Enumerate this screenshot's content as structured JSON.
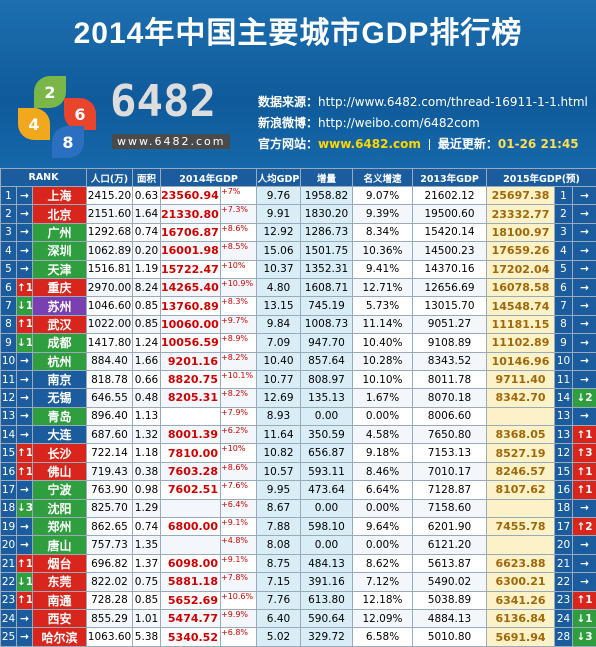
{
  "header": {
    "title": "2014年中国主要城市GDP排行榜",
    "logo": {
      "text": "6482",
      "url": "www.6482.com",
      "petals": [
        "2",
        "6",
        "4",
        "8"
      ]
    },
    "info": [
      {
        "label": "数据来源：",
        "value": "http://www.6482.com/thread-16911-1-1.html"
      },
      {
        "label": "新浪微博：",
        "value": "http://weibo.com/6482com"
      },
      {
        "label": "官方网站：",
        "value": "www.6482.com",
        "label2": "最近更新：",
        "value2": "01-26 21:45"
      }
    ]
  },
  "table": {
    "columns": [
      "RANK",
      "人口(万)",
      "面积",
      "2014年GDP",
      "人均GDP",
      "增量",
      "名义增速",
      "2013年GDP",
      "2015年GDP(预)"
    ],
    "rows": [
      [
        "1",
        "→",
        "上海",
        "2415.20",
        "0.63",
        "23560.94",
        "+7%",
        "9.76",
        "1958.82",
        "9.07%",
        "21602.12",
        "25697.38",
        "1",
        "→"
      ],
      [
        "2",
        "→",
        "北京",
        "2151.60",
        "1.64",
        "21330.80",
        "+7.3%",
        "9.91",
        "1830.20",
        "9.39%",
        "19500.60",
        "23332.77",
        "2",
        "→"
      ],
      [
        "3",
        "→",
        "广州",
        "1292.68",
        "0.74",
        "16706.87",
        "+8.6%",
        "12.92",
        "1286.73",
        "8.34%",
        "15420.14",
        "18100.97",
        "3",
        "→"
      ],
      [
        "4",
        "→",
        "深圳",
        "1062.89",
        "0.20",
        "16001.98",
        "+8.5%",
        "15.06",
        "1501.75",
        "10.36%",
        "14500.23",
        "17659.26",
        "4",
        "→"
      ],
      [
        "5",
        "→",
        "天津",
        "1516.81",
        "1.19",
        "15722.47",
        "+10%",
        "10.37",
        "1352.31",
        "9.41%",
        "14370.16",
        "17202.04",
        "5",
        "→"
      ],
      [
        "6",
        "↑1",
        "重庆",
        "2970.00",
        "8.24",
        "14265.40",
        "+10.9%",
        "4.80",
        "1608.71",
        "12.71%",
        "12656.69",
        "16078.58",
        "6",
        "→"
      ],
      [
        "7",
        "↓1",
        "苏州",
        "1046.60",
        "0.85",
        "13760.89",
        "+8.3%",
        "13.15",
        "745.19",
        "5.73%",
        "13015.70",
        "14548.74",
        "7",
        "→"
      ],
      [
        "8",
        "↑1",
        "武汉",
        "1022.00",
        "0.85",
        "10060.00",
        "+9.7%",
        "9.84",
        "1008.73",
        "11.14%",
        "9051.27",
        "11181.15",
        "8",
        "→"
      ],
      [
        "9",
        "↓1",
        "成都",
        "1417.80",
        "1.24",
        "10056.59",
        "+8.9%",
        "7.09",
        "947.70",
        "10.40%",
        "9108.89",
        "11102.89",
        "9",
        "→"
      ],
      [
        "10",
        "→",
        "杭州",
        "884.40",
        "1.66",
        "9201.16",
        "+8.2%",
        "10.40",
        "857.64",
        "10.28%",
        "8343.52",
        "10146.96",
        "10",
        "→"
      ],
      [
        "11",
        "→",
        "南京",
        "818.78",
        "0.66",
        "8820.75",
        "+10.1%",
        "10.77",
        "808.97",
        "10.10%",
        "8011.78",
        "9711.40",
        "11",
        "→"
      ],
      [
        "12",
        "→",
        "无锡",
        "646.55",
        "0.48",
        "8205.31",
        "+8.2%",
        "12.69",
        "135.13",
        "1.67%",
        "8070.18",
        "8342.70",
        "14",
        "↓2"
      ],
      [
        "13",
        "→",
        "青岛",
        "896.40",
        "1.13",
        null,
        "+7.9%",
        "8.93",
        "0.00",
        "0.00%",
        "8006.60",
        null,
        "13",
        "→"
      ],
      [
        "14",
        "→",
        "大连",
        "687.60",
        "1.32",
        "8001.39",
        "+6.2%",
        "11.64",
        "350.59",
        "4.58%",
        "7650.80",
        "8368.05",
        "13",
        "↑1"
      ],
      [
        "15",
        "↑1",
        "长沙",
        "722.14",
        "1.18",
        "7810.00",
        "+10%",
        "10.82",
        "656.87",
        "9.18%",
        "7153.13",
        "8527.19",
        "12",
        "↑3"
      ],
      [
        "16",
        "↑1",
        "佛山",
        "719.43",
        "0.38",
        "7603.28",
        "+8.6%",
        "10.57",
        "593.11",
        "8.46%",
        "7010.17",
        "8246.57",
        "15",
        "↑1"
      ],
      [
        "17",
        "→",
        "宁波",
        "763.90",
        "0.98",
        "7602.51",
        "+7.6%",
        "9.95",
        "473.64",
        "6.64%",
        "7128.87",
        "8107.62",
        "16",
        "↑1"
      ],
      [
        "18",
        "↓3",
        "沈阳",
        "825.70",
        "1.29",
        null,
        "+6.4%",
        "8.67",
        "0.00",
        "0.00%",
        "7158.60",
        null,
        "18",
        "→"
      ],
      [
        "19",
        "→",
        "郑州",
        "862.65",
        "0.74",
        "6800.00",
        "+9.1%",
        "7.88",
        "598.10",
        "9.64%",
        "6201.90",
        "7455.78",
        "17",
        "↑2"
      ],
      [
        "20",
        "→",
        "唐山",
        "757.73",
        "1.35",
        null,
        "+4.8%",
        "8.08",
        "0.00",
        "0.00%",
        "6121.20",
        null,
        "20",
        "→"
      ],
      [
        "21",
        "↑1",
        "烟台",
        "696.82",
        "1.37",
        "6098.00",
        "+9.1%",
        "8.75",
        "484.13",
        "8.62%",
        "5613.87",
        "6623.88",
        "21",
        "→"
      ],
      [
        "22",
        "↓1",
        "东莞",
        "822.02",
        "0.75",
        "5881.18",
        "+7.8%",
        "7.15",
        "391.16",
        "7.12%",
        "5490.02",
        "6300.21",
        "22",
        "→"
      ],
      [
        "23",
        "↑1",
        "南通",
        "728.28",
        "0.85",
        "5652.69",
        "+10.6%",
        "7.76",
        "613.80",
        "12.18%",
        "5038.89",
        "6341.26",
        "23",
        "↑1"
      ],
      [
        "24",
        "→",
        "西安",
        "855.29",
        "1.01",
        "5474.77",
        "+9.9%",
        "6.40",
        "590.64",
        "12.09%",
        "4884.13",
        "6136.84",
        "24",
        "↓1"
      ],
      [
        "25",
        "→",
        "哈尔滨",
        "1063.60",
        "5.38",
        "5340.52",
        "+6.8%",
        "5.02",
        "329.72",
        "6.58%",
        "5010.80",
        "5691.94",
        "28",
        "↓3"
      ]
    ]
  }
}
